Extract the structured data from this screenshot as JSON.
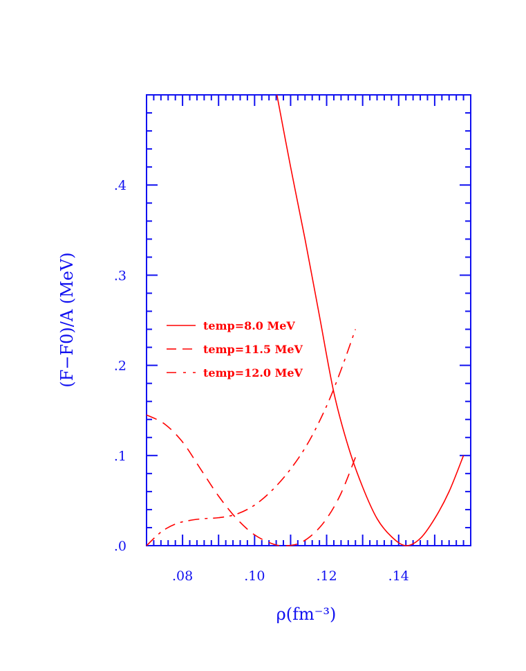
{
  "chart_data": {
    "type": "line",
    "xlabel": "ρ(fm⁻³)",
    "ylabel": "(F−F0)/A (MeV)",
    "xlim": [
      0.07,
      0.16
    ],
    "ylim": [
      0.0,
      0.5
    ],
    "xticks": [
      {
        "v": 0.08,
        "label": ".08"
      },
      {
        "v": 0.1,
        "label": ".10"
      },
      {
        "v": 0.12,
        "label": ".12"
      },
      {
        "v": 0.14,
        "label": ".14"
      }
    ],
    "yticks": [
      {
        "v": 0.0,
        "label": ".0"
      },
      {
        "v": 0.1,
        "label": ".1"
      },
      {
        "v": 0.2,
        "label": ".2"
      },
      {
        "v": 0.3,
        "label": ".3"
      },
      {
        "v": 0.4,
        "label": ".4"
      }
    ],
    "grid": false,
    "legend_position": "middle-left",
    "axis_color": "#1010f0",
    "series": [
      {
        "name": "temp=8.0 MeV",
        "style": "solid",
        "color": "#ff0000",
        "x": [
          0.1062,
          0.11,
          0.114,
          0.118,
          0.122,
          0.126,
          0.13,
          0.134,
          0.138,
          0.142,
          0.146,
          0.15,
          0.154,
          0.158
        ],
        "y": [
          0.5,
          0.42,
          0.34,
          0.255,
          0.17,
          0.11,
          0.065,
          0.03,
          0.01,
          0.0,
          0.008,
          0.03,
          0.06,
          0.1
        ]
      },
      {
        "name": "temp=11.5 MeV",
        "style": "dashed",
        "color": "#ff0000",
        "x": [
          0.07,
          0.075,
          0.08,
          0.085,
          0.09,
          0.095,
          0.1,
          0.105,
          0.108,
          0.112,
          0.116,
          0.12,
          0.124,
          0.128
        ],
        "y": [
          0.145,
          0.135,
          0.115,
          0.085,
          0.055,
          0.03,
          0.012,
          0.002,
          0.0,
          0.002,
          0.012,
          0.03,
          0.058,
          0.098
        ]
      },
      {
        "name": "temp=12.0 MeV",
        "style": "dashdot",
        "color": "#ff0000",
        "x": [
          0.07,
          0.074,
          0.078,
          0.082,
          0.086,
          0.09,
          0.095,
          0.1,
          0.105,
          0.11,
          0.115,
          0.12,
          0.124,
          0.128
        ],
        "y": [
          0.0,
          0.015,
          0.024,
          0.028,
          0.03,
          0.031,
          0.035,
          0.045,
          0.062,
          0.085,
          0.115,
          0.155,
          0.195,
          0.24
        ]
      }
    ]
  }
}
